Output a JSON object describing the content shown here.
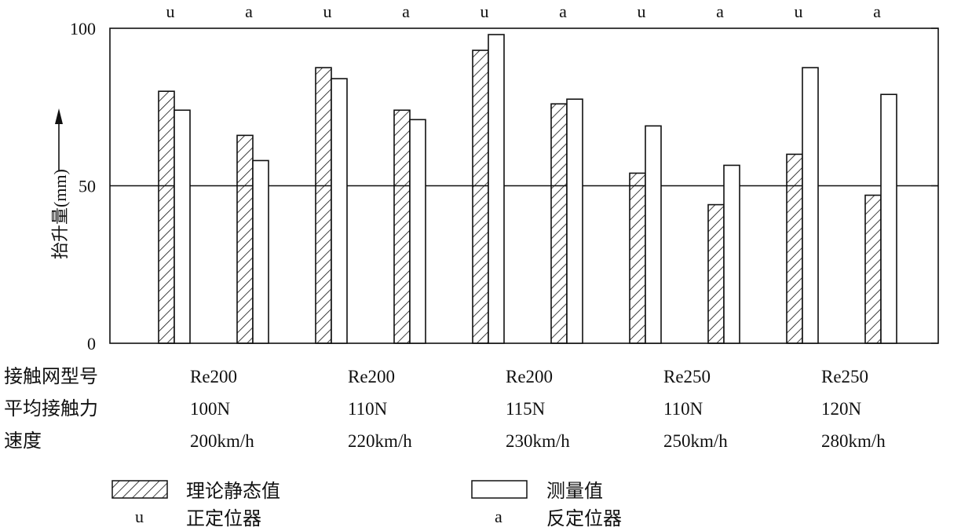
{
  "chart_data": {
    "type": "bar",
    "title": "",
    "ylabel": "抬升量(mm)",
    "ylim": [
      0,
      100
    ],
    "yticks": [
      "0",
      "50",
      "100"
    ],
    "reference_line": 50,
    "top_labels": [
      "u",
      "a",
      "u",
      "a",
      "u",
      "a",
      "u",
      "a",
      "u",
      "a"
    ],
    "categories": [
      "u",
      "a",
      "u",
      "a",
      "u",
      "a",
      "u",
      "a",
      "u",
      "a"
    ],
    "series": [
      {
        "name": "理论静态值",
        "style": "hatched",
        "values": [
          80,
          66,
          87.5,
          74,
          93,
          76,
          54,
          44,
          60,
          47
        ]
      },
      {
        "name": "测量值",
        "style": "white",
        "values": [
          74,
          58,
          84,
          71,
          98,
          77.5,
          69,
          56.5,
          87.5,
          79
        ]
      }
    ],
    "table": {
      "row_labels": [
        "接触网型号",
        "平均接触力",
        "速度"
      ],
      "columns": [
        [
          "Re200",
          "100N",
          "200km/h"
        ],
        [
          "Re200",
          "110N",
          "220km/h"
        ],
        [
          "Re200",
          "115N",
          "230km/h"
        ],
        [
          "Re250",
          "110N",
          "250km/h"
        ],
        [
          "Re250",
          "120N",
          "280km/h"
        ]
      ]
    },
    "legend": {
      "hatched": "理论静态值",
      "white": "测量值",
      "u_symbol": "u",
      "u_text": "正定位器",
      "a_symbol": "a",
      "a_text": "反定位器"
    }
  }
}
